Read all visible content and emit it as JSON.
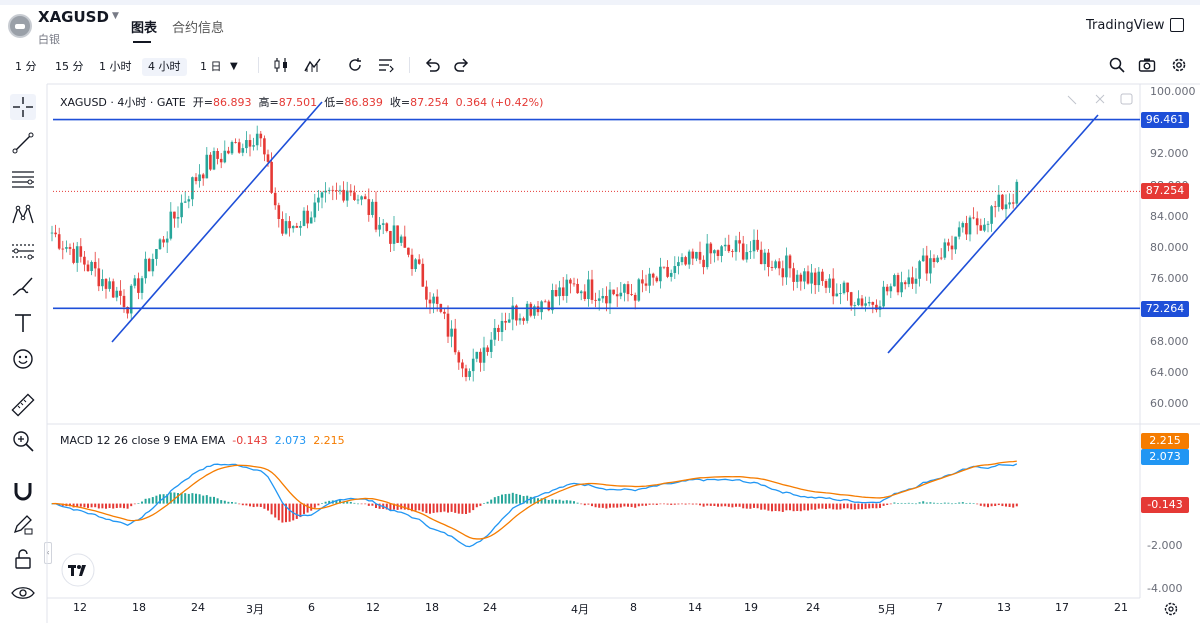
{
  "header": {
    "symbol": "XAGUSD",
    "symbol_sub": "白银",
    "tabs": [
      {
        "label": "图表"
      },
      {
        "label": "合约信息"
      }
    ],
    "brand": "TradingView"
  },
  "toolbar": {
    "intervals": [
      "1 分",
      "15 分",
      "1 小时",
      "4 小时",
      "1 日"
    ],
    "active_interval": "4 小时"
  },
  "legend": {
    "title": "XAGUSD · 4小时 · GATE",
    "open_label": "开=",
    "open": "86.893",
    "high_label": "高=",
    "high": "87.501",
    "low_label": "低=",
    "low": "86.839",
    "close_label": "收=",
    "close": "87.254",
    "change": "0.364",
    "change_pct": "(+0.42%)"
  },
  "macd_legend": {
    "title": "MACD 12 26 close 9 EMA EMA",
    "hist": "-0.143",
    "macd": "2.073",
    "signal": "2.215"
  },
  "price_tags": {
    "upper_line": "96.461",
    "last": "87.254",
    "lower_line": "72.264",
    "signal": "2.215",
    "macd": "2.073",
    "hist": "-0.143"
  },
  "price_axis": [
    "100.000",
    "96.000",
    "92.000",
    "88.000",
    "84.000",
    "80.000",
    "76.000",
    "72.000",
    "68.000",
    "64.000",
    "60.000"
  ],
  "macd_axis": [
    "-2.000",
    "-4.000"
  ],
  "time_axis": [
    "12",
    "18",
    "24",
    "3月",
    "6",
    "12",
    "18",
    "24",
    "4月",
    "8",
    "14",
    "19",
    "24",
    "5月",
    "7",
    "13",
    "17",
    "21"
  ],
  "colors": {
    "up": "#26a69a",
    "down": "#e53935",
    "line": "#1e4fd8",
    "macd": "#2196f3",
    "signal": "#f57c00"
  },
  "chart_data": {
    "type": "candlestick",
    "symbol": "XAGUSD",
    "interval": "4小时",
    "ylim": [
      60,
      100
    ],
    "horizontal_lines": [
      96.461,
      72.264
    ],
    "last_price": 87.254,
    "time_labels": [
      "12",
      "18",
      "24",
      "3月",
      "6",
      "12",
      "18",
      "24",
      "4月",
      "8",
      "14",
      "19",
      "24",
      "5月",
      "7",
      "13",
      "17",
      "21"
    ],
    "close_path_keyframes": [
      {
        "x": "12",
        "y": 82
      },
      {
        "x": "18",
        "y": 73
      },
      {
        "x": "24",
        "y": 90
      },
      {
        "x": "3月",
        "y": 95
      },
      {
        "x": "6",
        "y": 82
      },
      {
        "x": "12",
        "y": 88
      },
      {
        "x": "18",
        "y": 79
      },
      {
        "x": "24",
        "y": 64
      },
      {
        "x": "24",
        "y": 71
      },
      {
        "x": "4月",
        "y": 75
      },
      {
        "x": "8",
        "y": 74
      },
      {
        "x": "14",
        "y": 79
      },
      {
        "x": "19",
        "y": 80
      },
      {
        "x": "24",
        "y": 75
      },
      {
        "x": "5月",
        "y": 73
      },
      {
        "x": "7",
        "y": 79
      },
      {
        "x": "13",
        "y": 87.254
      }
    ],
    "macd": {
      "macd": 2.073,
      "signal": 2.215,
      "hist": -0.143,
      "ylim": [
        -4.5,
        3
      ]
    }
  }
}
